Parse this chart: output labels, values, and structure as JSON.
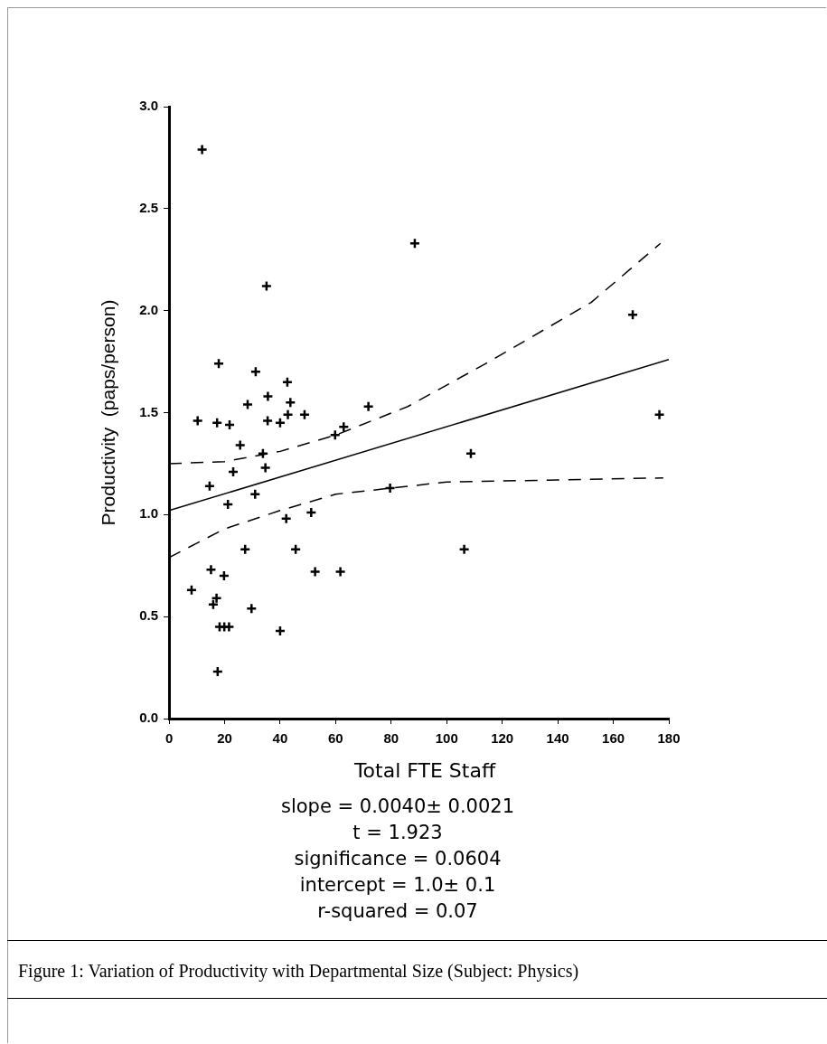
{
  "chart_data": {
    "type": "scatter",
    "xlabel": "Total FTE Staff",
    "ylabel": "Productivity  (paps/person)",
    "xlim": [
      0,
      180
    ],
    "xticks": [
      0,
      20,
      40,
      60,
      80,
      100,
      120,
      140,
      160,
      180
    ],
    "ylim": [
      0,
      3
    ],
    "yticks": [
      {
        "value": 0,
        "label": "0.0"
      },
      {
        "value": 0.5,
        "label": "0.5"
      },
      {
        "value": 1,
        "label": "1.0"
      },
      {
        "value": 1.5,
        "label": "1.5"
      },
      {
        "value": 2,
        "label": "2.0"
      },
      {
        "value": 2.5,
        "label": "2.5"
      },
      {
        "value": 3,
        "label": "3.0"
      }
    ],
    "grid": false,
    "legend": false,
    "marker": "cross",
    "series": [
      {
        "color": "#000000",
        "x": [
          11.9,
          35.1,
          17.9,
          31.2,
          42.6,
          35.6,
          28.3,
          43.7,
          71.8,
          10.3,
          17.3,
          21.8,
          35.5,
          40.0,
          42.8,
          48.8,
          25.6,
          33.8,
          59.8,
          62.9,
          23.1,
          34.7,
          14.6,
          31.0,
          21.2,
          79.6,
          42.2,
          51.2,
          27.4,
          45.6,
          15.1,
          19.8,
          52.6,
          61.7,
          8.1,
          17.1,
          15.9,
          29.7,
          18.2,
          19.9,
          21.6,
          40.0,
          17.5,
          88.5,
          167.0,
          176.6,
          108.7,
          106.3
        ],
        "values": [
          2.79,
          2.12,
          1.74,
          1.7,
          1.65,
          1.58,
          1.54,
          1.55,
          1.53,
          1.46,
          1.45,
          1.44,
          1.46,
          1.45,
          1.49,
          1.49,
          1.34,
          1.3,
          1.39,
          1.43,
          1.21,
          1.23,
          1.14,
          1.1,
          1.05,
          1.13,
          0.98,
          1.01,
          0.83,
          0.83,
          0.73,
          0.7,
          0.72,
          0.72,
          0.63,
          0.59,
          0.56,
          0.54,
          0.45,
          0.45,
          0.45,
          0.43,
          0.23,
          2.33,
          1.98,
          1.49,
          1.3,
          0.83
        ]
      },
      {
        "type": "line",
        "color": "#000000",
        "line_style": "solid",
        "marker": "none",
        "x": [
          0,
          180
        ],
        "values": [
          1.02,
          1.76
        ]
      },
      {
        "type": "line",
        "color": "#000000",
        "line_style": "dashed",
        "marker": "none",
        "x": [
          0,
          20,
          40,
          60,
          86,
          114,
          152,
          177
        ],
        "values": [
          1.25,
          1.26,
          1.31,
          1.39,
          1.53,
          1.74,
          2.04,
          2.33
        ]
      },
      {
        "type": "line",
        "color": "#000000",
        "line_style": "dashed",
        "marker": "none",
        "x": [
          0,
          20,
          40,
          60,
          80,
          100,
          140,
          178
        ],
        "values": [
          0.79,
          0.93,
          1.02,
          1.1,
          1.13,
          1.16,
          1.17,
          1.18
        ]
      }
    ],
    "annotations": [
      "slope =  0.0040± 0.0021",
      "t =  1.923",
      "significance =  0.0604",
      "intercept =  1.0± 0.1",
      "r-squared =  0.07",
      "Figure 1:  Variation of Productivity with Departmental Size (Subject: Physics)"
    ]
  }
}
